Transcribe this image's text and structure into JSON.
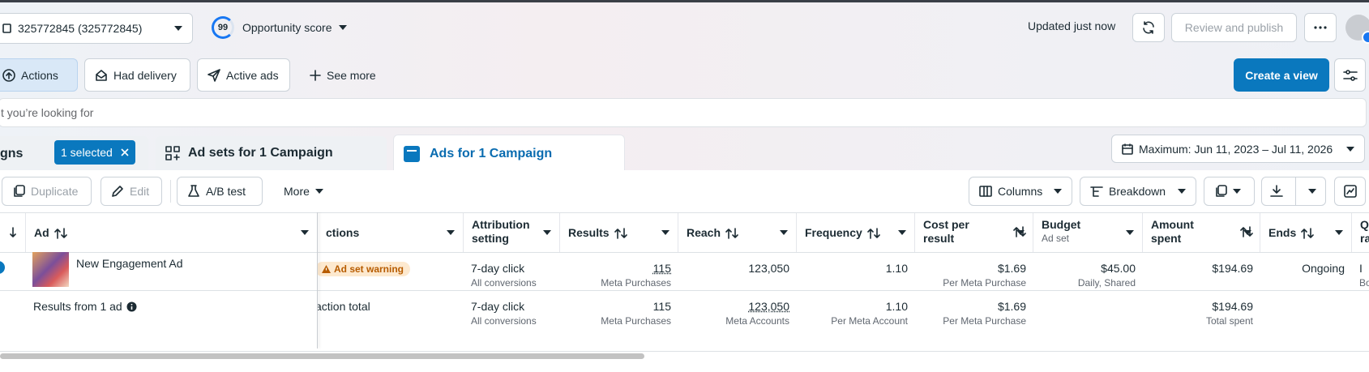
{
  "header": {
    "account": "325772845 (325772845)",
    "score": "99",
    "score_label": "Opportunity score",
    "status": "Updated just now",
    "review": "Review and publish"
  },
  "filters": {
    "items": [
      "Actions",
      "Had delivery",
      "Active ads"
    ],
    "see_more": "See more",
    "create_view": "Create a view"
  },
  "search": {
    "placeholder": "t you’re looking for"
  },
  "tabs": {
    "campaigns": "gns",
    "selected": "1 selected",
    "ad_sets": "Ad sets for 1 Campaign",
    "ads": "Ads for 1 Campaign",
    "date_range": "Maximum: Jun 11, 2023 – Jul 11, 2026"
  },
  "toolbar": {
    "duplicate": "Duplicate",
    "edit": "Edit",
    "ab_test": "A/B test",
    "more": "More",
    "columns": "Columns",
    "breakdown": "Breakdown"
  },
  "table": {
    "columns": [
      {
        "label": "Ad"
      },
      {
        "label": "ctions"
      },
      {
        "label": "Attribution setting"
      },
      {
        "label": "Results"
      },
      {
        "label": "Reach"
      },
      {
        "label": "Frequency"
      },
      {
        "label": "Cost per result"
      },
      {
        "label": "Budget",
        "sub": "Ad set"
      },
      {
        "label": "Amount spent"
      },
      {
        "label": "Ends"
      },
      {
        "label": "Q ra"
      }
    ],
    "rows": [
      [
        {
          "main": "New Engagement Ad"
        },
        {
          "badge": "Ad set warning"
        },
        {
          "main": "7-day click",
          "sub": "All conversions"
        },
        {
          "main": "115",
          "sub": "Meta Purchases"
        },
        {
          "main": "123,050"
        },
        {
          "main": "1.10"
        },
        {
          "main": "$1.69",
          "sub": "Per Meta Purchase"
        },
        {
          "main": "$45.00",
          "sub": "Daily, Shared"
        },
        {
          "main": "$194.69"
        },
        {
          "main": "Ongoing"
        },
        {
          "main": "I",
          "sub": "Bo"
        }
      ],
      [
        {
          "main": "Results from 1 ad"
        },
        {
          "main": "action total"
        },
        {
          "main": "7-day click",
          "sub": "All conversions"
        },
        {
          "main": "115",
          "sub": "Meta Purchases"
        },
        {
          "main": "123,050",
          "sub": "Meta Accounts"
        },
        {
          "main": "1.10",
          "sub": "Per Meta Account"
        },
        {
          "main": "$1.69",
          "sub": "Per Meta Purchase"
        },
        null,
        {
          "main": "$194.69",
          "sub": "Total spent"
        },
        null,
        null
      ]
    ]
  }
}
